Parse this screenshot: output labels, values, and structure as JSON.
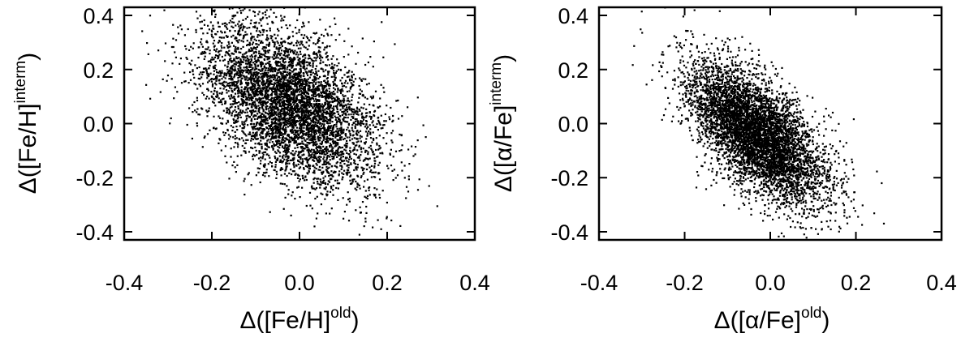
{
  "chart_data": [
    {
      "type": "scatter",
      "xlabel": {
        "main": "Δ([Fe/H]",
        "sup": "old",
        "close": ")"
      },
      "ylabel": {
        "main": "Δ([Fe/H]",
        "sup": "interm",
        "close": ")"
      },
      "xlim": [
        -0.4,
        0.4
      ],
      "ylim": [
        -0.43,
        0.43
      ],
      "xticks": [
        -0.4,
        -0.2,
        0.0,
        0.2,
        0.4
      ],
      "yticks": [
        0.4,
        0.2,
        0.0,
        -0.2,
        -0.4
      ],
      "xtick_labels": [
        "-0.4",
        "-0.2",
        "0.0",
        "0.2",
        "0.4"
      ],
      "ytick_labels": [
        "0.4",
        "0.2",
        "0.0",
        "-0.2",
        "-0.4"
      ],
      "grid": false,
      "point_color": "#000000",
      "distribution": {
        "n_points": 5200,
        "center": [
          -0.02,
          0.07
        ],
        "std": [
          0.1,
          0.15
        ],
        "correlation": -0.48,
        "seed": 11
      }
    },
    {
      "type": "scatter",
      "xlabel": {
        "main": "Δ([α/Fe]",
        "sup": "old",
        "close": ")"
      },
      "ylabel": {
        "main": "Δ([α/Fe]",
        "sup": "interm",
        "close": ")"
      },
      "xlim": [
        -0.4,
        0.4
      ],
      "ylim": [
        -0.43,
        0.43
      ],
      "xticks": [
        -0.4,
        -0.2,
        0.0,
        0.2,
        0.4
      ],
      "yticks": [
        0.4,
        0.2,
        0.0,
        -0.2,
        -0.4
      ],
      "xtick_labels": [
        "-0.4",
        "-0.2",
        "0.0",
        "0.2",
        "0.4"
      ],
      "ytick_labels": [
        "0.4",
        "0.2",
        "0.0",
        "-0.2",
        "-0.4"
      ],
      "grid": false,
      "point_color": "#000000",
      "distribution": {
        "n_points": 5600,
        "center": [
          -0.03,
          -0.04
        ],
        "std": [
          0.08,
          0.13
        ],
        "correlation": -0.62,
        "seed": 29
      }
    }
  ]
}
